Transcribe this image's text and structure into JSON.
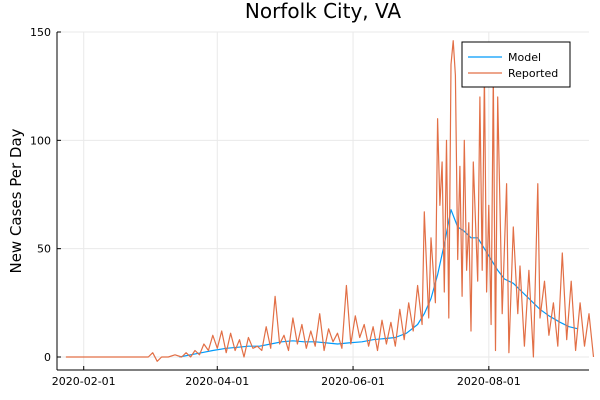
{
  "chart_data": {
    "type": "line",
    "title": "Norfolk City, VA",
    "xlabel": "",
    "ylabel": "New Cases Per Day",
    "x_ticks": [
      "2020-02-01",
      "2020-04-01",
      "2020-06-01",
      "2020-08-01"
    ],
    "y_ticks": [
      0,
      50,
      100,
      150
    ],
    "xlim": [
      "2020-01-20",
      "2020-09-15"
    ],
    "ylim": [
      -6,
      150
    ],
    "grid": true,
    "legend_position": "top-right",
    "series": [
      {
        "name": "Model",
        "color": "#009AFA",
        "points": [
          [
            "2020-03-15",
            0
          ],
          [
            "2020-03-20",
            1
          ],
          [
            "2020-03-25",
            2
          ],
          [
            "2020-03-30",
            3
          ],
          [
            "2020-04-05",
            4
          ],
          [
            "2020-04-10",
            4.5
          ],
          [
            "2020-04-15",
            5
          ],
          [
            "2020-04-20",
            5
          ],
          [
            "2020-04-25",
            6
          ],
          [
            "2020-04-30",
            7
          ],
          [
            "2020-05-05",
            7.5
          ],
          [
            "2020-05-10",
            7
          ],
          [
            "2020-05-15",
            7
          ],
          [
            "2020-05-20",
            6.5
          ],
          [
            "2020-05-25",
            6
          ],
          [
            "2020-05-30",
            6.5
          ],
          [
            "2020-06-05",
            7
          ],
          [
            "2020-06-10",
            8
          ],
          [
            "2020-06-15",
            8.5
          ],
          [
            "2020-06-20",
            9
          ],
          [
            "2020-06-25",
            11
          ],
          [
            "2020-06-30",
            15
          ],
          [
            "2020-07-03",
            20
          ],
          [
            "2020-07-06",
            27
          ],
          [
            "2020-07-09",
            38
          ],
          [
            "2020-07-12",
            52
          ],
          [
            "2020-07-15",
            68
          ],
          [
            "2020-07-18",
            60
          ],
          [
            "2020-07-21",
            58
          ],
          [
            "2020-07-24",
            55
          ],
          [
            "2020-07-27",
            55
          ],
          [
            "2020-07-30",
            50
          ],
          [
            "2020-08-02",
            45
          ],
          [
            "2020-08-05",
            40
          ],
          [
            "2020-08-08",
            36
          ],
          [
            "2020-08-12",
            34
          ],
          [
            "2020-08-16",
            30
          ],
          [
            "2020-08-20",
            26
          ],
          [
            "2020-08-24",
            22
          ],
          [
            "2020-08-28",
            19
          ],
          [
            "2020-09-02",
            16
          ],
          [
            "2020-09-06",
            14
          ],
          [
            "2020-09-10",
            13
          ]
        ]
      },
      {
        "name": "Reported",
        "color": "#E26F46",
        "points": [
          [
            "2020-01-24",
            0
          ],
          [
            "2020-03-01",
            0
          ],
          [
            "2020-03-03",
            2
          ],
          [
            "2020-03-05",
            -2
          ],
          [
            "2020-03-07",
            0
          ],
          [
            "2020-03-10",
            0
          ],
          [
            "2020-03-13",
            1
          ],
          [
            "2020-03-16",
            0
          ],
          [
            "2020-03-18",
            2
          ],
          [
            "2020-03-20",
            0
          ],
          [
            "2020-03-22",
            3
          ],
          [
            "2020-03-24",
            1
          ],
          [
            "2020-03-26",
            6
          ],
          [
            "2020-03-28",
            3
          ],
          [
            "2020-03-30",
            10
          ],
          [
            "2020-04-01",
            4
          ],
          [
            "2020-04-03",
            12
          ],
          [
            "2020-04-05",
            2
          ],
          [
            "2020-04-07",
            11
          ],
          [
            "2020-04-09",
            3
          ],
          [
            "2020-04-11",
            8
          ],
          [
            "2020-04-13",
            0
          ],
          [
            "2020-04-15",
            9
          ],
          [
            "2020-04-17",
            4
          ],
          [
            "2020-04-19",
            5
          ],
          [
            "2020-04-21",
            3
          ],
          [
            "2020-04-23",
            14
          ],
          [
            "2020-04-25",
            4
          ],
          [
            "2020-04-27",
            28
          ],
          [
            "2020-04-29",
            6
          ],
          [
            "2020-05-01",
            10
          ],
          [
            "2020-05-03",
            3
          ],
          [
            "2020-05-05",
            18
          ],
          [
            "2020-05-07",
            6
          ],
          [
            "2020-05-09",
            15
          ],
          [
            "2020-05-11",
            4
          ],
          [
            "2020-05-13",
            12
          ],
          [
            "2020-05-15",
            5
          ],
          [
            "2020-05-17",
            20
          ],
          [
            "2020-05-19",
            3
          ],
          [
            "2020-05-21",
            13
          ],
          [
            "2020-05-23",
            7
          ],
          [
            "2020-05-25",
            11
          ],
          [
            "2020-05-27",
            4
          ],
          [
            "2020-05-29",
            33
          ],
          [
            "2020-05-31",
            6
          ],
          [
            "2020-06-02",
            19
          ],
          [
            "2020-06-04",
            9
          ],
          [
            "2020-06-06",
            15
          ],
          [
            "2020-06-08",
            5
          ],
          [
            "2020-06-10",
            14
          ],
          [
            "2020-06-12",
            3
          ],
          [
            "2020-06-14",
            17
          ],
          [
            "2020-06-16",
            6
          ],
          [
            "2020-06-18",
            16
          ],
          [
            "2020-06-20",
            5
          ],
          [
            "2020-06-22",
            22
          ],
          [
            "2020-06-24",
            8
          ],
          [
            "2020-06-26",
            25
          ],
          [
            "2020-06-28",
            12
          ],
          [
            "2020-06-30",
            33
          ],
          [
            "2020-07-02",
            15
          ],
          [
            "2020-07-03",
            67
          ],
          [
            "2020-07-05",
            18
          ],
          [
            "2020-07-06",
            55
          ],
          [
            "2020-07-08",
            25
          ],
          [
            "2020-07-09",
            110
          ],
          [
            "2020-07-10",
            70
          ],
          [
            "2020-07-11",
            90
          ],
          [
            "2020-07-12",
            30
          ],
          [
            "2020-07-13",
            100
          ],
          [
            "2020-07-14",
            18
          ],
          [
            "2020-07-15",
            135
          ],
          [
            "2020-07-16",
            146
          ],
          [
            "2020-07-17",
            130
          ],
          [
            "2020-07-18",
            45
          ],
          [
            "2020-07-19",
            88
          ],
          [
            "2020-07-20",
            28
          ],
          [
            "2020-07-21",
            100
          ],
          [
            "2020-07-22",
            40
          ],
          [
            "2020-07-23",
            62
          ],
          [
            "2020-07-24",
            12
          ],
          [
            "2020-07-25",
            90
          ],
          [
            "2020-07-27",
            35
          ],
          [
            "2020-07-28",
            120
          ],
          [
            "2020-07-29",
            40
          ],
          [
            "2020-07-30",
            130
          ],
          [
            "2020-07-31",
            30
          ],
          [
            "2020-08-01",
            70
          ],
          [
            "2020-08-02",
            15
          ],
          [
            "2020-08-03",
            130
          ],
          [
            "2020-08-04",
            3
          ],
          [
            "2020-08-05",
            120
          ],
          [
            "2020-08-07",
            20
          ],
          [
            "2020-08-09",
            80
          ],
          [
            "2020-08-10",
            2
          ],
          [
            "2020-08-12",
            60
          ],
          [
            "2020-08-14",
            20
          ],
          [
            "2020-08-15",
            42
          ],
          [
            "2020-08-17",
            5
          ],
          [
            "2020-08-19",
            40
          ],
          [
            "2020-08-21",
            0
          ],
          [
            "2020-08-23",
            80
          ],
          [
            "2020-08-24",
            18
          ],
          [
            "2020-08-26",
            35
          ],
          [
            "2020-08-28",
            10
          ],
          [
            "2020-08-30",
            25
          ],
          [
            "2020-09-01",
            5
          ],
          [
            "2020-09-03",
            48
          ],
          [
            "2020-09-05",
            8
          ],
          [
            "2020-09-07",
            35
          ],
          [
            "2020-09-09",
            3
          ],
          [
            "2020-09-11",
            25
          ],
          [
            "2020-09-13",
            5
          ],
          [
            "2020-09-15",
            20
          ],
          [
            "2020-09-17",
            0
          ]
        ]
      }
    ]
  }
}
